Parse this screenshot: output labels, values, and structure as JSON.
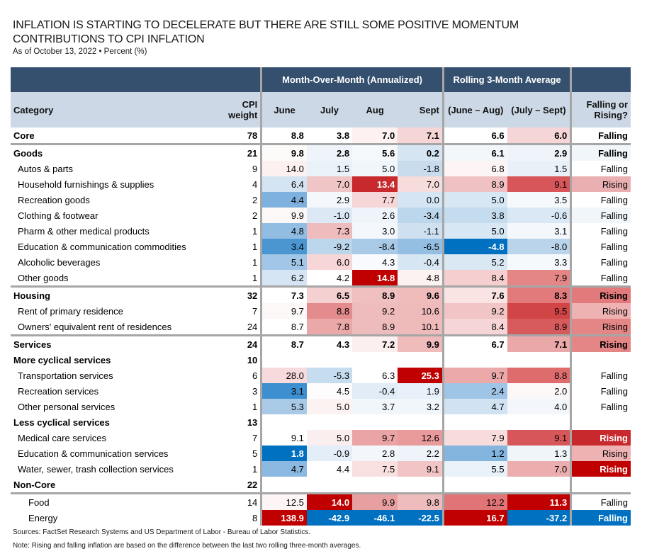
{
  "title_line1": "INFLATION IS STARTING TO DECELERATE BUT THERE ARE STILL SOME POSITIVE MOMENTUM",
  "title_line2": "CONTRIBUTIONS TO CPI INFLATION",
  "subtitle": "As of October 13, 2022 • Percent (%)",
  "header": {
    "group_mom": "Month-Over-Month (Annualized)",
    "group_rolling": "Rolling 3-Month Average",
    "category": "Category",
    "weight": "CPI weight",
    "june": "June",
    "july": "July",
    "aug": "Aug",
    "sept": "Sept",
    "june_aug": "(June – Aug)",
    "july_sept": "(July – Sept)",
    "falling_rising_1": "Falling or",
    "falling_rising_2": "Rising?"
  },
  "colors": {
    "header_dark": "#35506e",
    "header_light": "#ccd8e6",
    "separator": "#a6a6a6",
    "deep_red": "#c00000",
    "deep_blue": "#0070c0"
  },
  "rows": [
    {
      "category": "Core",
      "level": 0,
      "bold": true,
      "weight": "78",
      "june": "8.8",
      "july": "3.8",
      "aug": "7.0",
      "sept": "7.1",
      "ja": "6.6",
      "js": "6.0",
      "trend": "Falling",
      "bg": [
        "#ffffff",
        "#ffffff",
        "#fdf1f1",
        "#f5d5d6",
        "#ffffff",
        "#f5d5d6",
        "#ffffff"
      ]
    },
    {
      "category": "Goods",
      "level": 0,
      "bold": true,
      "sepTop": true,
      "weight": "21",
      "june": "9.8",
      "july": "2.8",
      "aug": "5.6",
      "sept": "0.2",
      "ja": "6.1",
      "js": "2.9",
      "trend": "Falling",
      "bg": [
        "#fdfafa",
        "#eef4fa",
        "#f6f9fc",
        "#d6e5f2",
        "#f2f7fb",
        "#eef4fa",
        "#f1f6fb"
      ]
    },
    {
      "category": "Autos & parts",
      "level": 1,
      "weight": "9",
      "june": "14.0",
      "july": "1.5",
      "aug": "5.0",
      "sept": "-1.8",
      "ja": "6.8",
      "js": "1.5",
      "trend": "Falling",
      "bg": [
        "#fcf0f0",
        "#e9f1f9",
        "#f1f6fb",
        "#c8dcee",
        "#fdf5f5",
        "#e8f0f8",
        "#ffffff"
      ]
    },
    {
      "category": "Household furnishings & supplies",
      "level": 1,
      "weight": "4",
      "june": "6.4",
      "july": "7.0",
      "aug": "13.4",
      "sept": "7.0",
      "ja": "8.9",
      "js": "9.1",
      "trend": "Rising",
      "bg": [
        "#d4e4f3",
        "#f0c5c6",
        "#c8292d",
        "#f7dcdc",
        "#f0c1c2",
        "#d75659",
        "#eab0b1"
      ],
      "white": [
        false,
        false,
        true,
        false,
        false,
        false,
        false
      ]
    },
    {
      "category": "Recreation goods",
      "level": 1,
      "weight": "2",
      "june": "4.4",
      "july": "2.9",
      "aug": "7.7",
      "sept": "0.0",
      "ja": "5.0",
      "js": "3.5",
      "trend": "Falling",
      "bg": [
        "#7eb1de",
        "#f4f8fc",
        "#f6d6d6",
        "#d5e5f3",
        "#d8e7f4",
        "#f6f9fc",
        "#ffffff"
      ]
    },
    {
      "category": "Clothing & footwear",
      "level": 1,
      "weight": "2",
      "june": "9.9",
      "july": "-1.0",
      "aug": "2.6",
      "sept": "-3.4",
      "ja": "3.8",
      "js": "-0.6",
      "trend": "Falling",
      "bg": [
        "#fdf8f8",
        "#dce9f5",
        "#eef4fa",
        "#bcd6ec",
        "#c5dbee",
        "#d9e8f4",
        "#f1f6fb"
      ]
    },
    {
      "category": "Pharm & other medical products",
      "level": 1,
      "weight": "1",
      "june": "4.8",
      "july": "7.3",
      "aug": "3.0",
      "sept": "-1.1",
      "ja": "5.0",
      "js": "3.1",
      "trend": "Falling",
      "bg": [
        "#92bde3",
        "#efbcbd",
        "#f4f8fc",
        "#cfe1f1",
        "#d8e7f4",
        "#f4f8fc",
        "#ffffff"
      ]
    },
    {
      "category": "Education & communication commodities",
      "level": 1,
      "weight": "1",
      "june": "3.4",
      "july": "-9.2",
      "aug": "-8.4",
      "sept": "-6.5",
      "ja": "-4.8",
      "js": "-8.0",
      "trend": "Falling",
      "bg": [
        "#4b96d1",
        "#bcd6ec",
        "#a9cae7",
        "#94bfe3",
        "#0070c0",
        "#b9d4eb",
        "#ffffff"
      ],
      "white": [
        false,
        false,
        false,
        false,
        true,
        false,
        false
      ]
    },
    {
      "category": "Alcoholic beverages",
      "level": 1,
      "weight": "1",
      "june": "5.1",
      "july": "6.0",
      "aug": "4.3",
      "sept": "-0.4",
      "ja": "5.2",
      "js": "3.3",
      "trend": "Falling",
      "bg": [
        "#a1c6e7",
        "#f6d6d7",
        "#f8fafd",
        "#d7e6f3",
        "#dae8f4",
        "#f6f9fc",
        "#ffffff"
      ]
    },
    {
      "category": "Other goods",
      "level": 1,
      "weight": "1",
      "june": "6.2",
      "july": "4.2",
      "aug": "14.8",
      "sept": "4.8",
      "ja": "8.4",
      "js": "7.9",
      "trend": "Falling",
      "bg": [
        "#d5e5f3",
        "#ffffff",
        "#c00000",
        "#fcf2f2",
        "#f5cfd0",
        "#e48586",
        "#ffffff"
      ],
      "white": [
        false,
        false,
        true,
        false,
        false,
        false,
        false
      ]
    },
    {
      "category": "Housing",
      "level": 0,
      "bold": true,
      "sepTop": true,
      "weight": "32",
      "june": "7.3",
      "july": "6.5",
      "aug": "8.9",
      "sept": "9.6",
      "ja": "7.6",
      "js": "8.3",
      "trend": "Rising",
      "bg": [
        "#ffffff",
        "#f5d0d1",
        "#f0bfc0",
        "#efbbbb",
        "#f9e3e3",
        "#e27a7b",
        "#e27a7b"
      ]
    },
    {
      "category": "Rent of primary residence",
      "level": 1,
      "weight": "7",
      "june": "9.7",
      "july": "8.8",
      "aug": "9.2",
      "sept": "10.6",
      "ja": "9.2",
      "js": "9.5",
      "trend": "Rising",
      "bg": [
        "#fdf8f8",
        "#e48b8d",
        "#efbcbd",
        "#eebaba",
        "#f1c4c5",
        "#d24546",
        "#eeb2b3"
      ]
    },
    {
      "category": "Owners' equivalent rent of residences",
      "level": 1,
      "weight": "24",
      "june": "8.7",
      "july": "7.8",
      "aug": "8.9",
      "sept": "10.1",
      "ja": "8.4",
      "js": "8.9",
      "trend": "Rising",
      "bg": [
        "#ffffff",
        "#eaa8a9",
        "#efbcbd",
        "#eebaba",
        "#f6d5d6",
        "#d75b5d",
        "#e48586"
      ]
    },
    {
      "category": "Services",
      "level": 0,
      "bold": true,
      "sepTop": true,
      "weight": "24",
      "june": "8.7",
      "july": "4.3",
      "aug": "7.2",
      "sept": "9.9",
      "ja": "6.7",
      "js": "7.1",
      "trend": "Rising",
      "bg": [
        "#ffffff",
        "#ffffff",
        "#fcefef",
        "#efbbbb",
        "#ffffff",
        "#eaa8a9",
        "#e48586"
      ]
    },
    {
      "category": "More cyclical services",
      "level": 0,
      "bold": true,
      "weight": "10",
      "june": "",
      "july": "",
      "aug": "",
      "sept": "",
      "ja": "",
      "js": "",
      "trend": "",
      "bg": [
        "#ffffff",
        "#ffffff",
        "#ffffff",
        "#ffffff",
        "#ffffff",
        "#ffffff",
        "#ffffff"
      ]
    },
    {
      "category": "Transportation services",
      "level": 1,
      "weight": "6",
      "june": "28.0",
      "july": "-5.3",
      "aug": "6.3",
      "sept": "25.3",
      "ja": "9.7",
      "js": "8.8",
      "trend": "Falling",
      "bg": [
        "#f7dadb",
        "#c6dcef",
        "#ffffff",
        "#c00000",
        "#eba9aa",
        "#df6c6d",
        "#ffffff"
      ],
      "white": [
        false,
        false,
        false,
        true,
        false,
        false,
        false
      ]
    },
    {
      "category": "Recreation services",
      "level": 1,
      "weight": "3",
      "june": "3.1",
      "july": "4.5",
      "aug": "-0.4",
      "sept": "1.9",
      "ja": "2.4",
      "js": "2.0",
      "trend": "Falling",
      "bg": [
        "#3d8fcf",
        "#fefcfc",
        "#e1ecf7",
        "#e8f1f9",
        "#9fc5e6",
        "#fdf8f8",
        "#ffffff"
      ]
    },
    {
      "category": "Other personal services",
      "level": 1,
      "weight": "1",
      "june": "5.3",
      "july": "5.0",
      "aug": "3.7",
      "sept": "3.2",
      "ja": "4.7",
      "js": "4.0",
      "trend": "Falling",
      "bg": [
        "#a8cae7",
        "#fcf2f2",
        "#f1f6fb",
        "#f1f6fb",
        "#d1e3f2",
        "#f3f7fb",
        "#ffffff"
      ]
    },
    {
      "category": "Less cyclical services",
      "level": 0,
      "bold": true,
      "weight": "13",
      "june": "",
      "july": "",
      "aug": "",
      "sept": "",
      "ja": "",
      "js": "",
      "trend": "",
      "bg": [
        "#ffffff",
        "#ffffff",
        "#ffffff",
        "#ffffff",
        "#ffffff",
        "#ffffff",
        "#ffffff"
      ]
    },
    {
      "category": "Medical care services",
      "level": 1,
      "weight": "7",
      "june": "9.1",
      "july": "5.0",
      "aug": "9.7",
      "sept": "12.6",
      "ja": "7.9",
      "js": "9.1",
      "trend": "Rising",
      "bg": [
        "#ffffff",
        "#fbeeee",
        "#eba4a5",
        "#e99a9b",
        "#f8dcdc",
        "#d75659",
        "#c8292d"
      ],
      "white": [
        false,
        false,
        false,
        false,
        false,
        false,
        true
      ]
    },
    {
      "category": "Education & communication services",
      "level": 1,
      "weight": "5",
      "june": "1.8",
      "july": "-0.9",
      "aug": "2.8",
      "sept": "2.2",
      "ja": "1.2",
      "js": "1.3",
      "trend": "Rising",
      "bg": [
        "#0070c0",
        "#e4eef8",
        "#f3f7fc",
        "#eef4fa",
        "#83b5de",
        "#f0f5fa",
        "#eeb2b3"
      ],
      "white": [
        true,
        false,
        false,
        false,
        false,
        false,
        false
      ]
    },
    {
      "category": "Water, sewer, trash collection services",
      "level": 1,
      "weight": "1",
      "june": "4.7",
      "july": "4.4",
      "aug": "7.5",
      "sept": "9.1",
      "ja": "5.5",
      "js": "7.0",
      "trend": "Rising",
      "bg": [
        "#8bb9e1",
        "#ffffff",
        "#f9e0e0",
        "#f1c4c5",
        "#e9f1f9",
        "#ebadae",
        "#c00000"
      ],
      "white": [
        false,
        false,
        false,
        false,
        false,
        false,
        true
      ]
    },
    {
      "category": "Non-Core",
      "level": 0,
      "bold": true,
      "weight": "22",
      "june": "",
      "july": "",
      "aug": "",
      "sept": "",
      "ja": "",
      "js": "",
      "trend": "",
      "bg": [
        "#ffffff",
        "#ffffff",
        "#ffffff",
        "#ffffff",
        "#ffffff",
        "#ffffff",
        "#ffffff"
      ]
    },
    {
      "category": "Food",
      "level": 2,
      "sepTop": true,
      "weight": "14",
      "june": "12.5",
      "july": "14.0",
      "aug": "9.9",
      "sept": "9.8",
      "ja": "12.2",
      "js": "11.3",
      "trend": "Falling",
      "bg": [
        "#fdf5f5",
        "#c00000",
        "#e89fa0",
        "#eebcbc",
        "#e07476",
        "#c00000",
        "#ffffff"
      ],
      "white": [
        false,
        true,
        false,
        false,
        false,
        true,
        false
      ]
    },
    {
      "category": "Energy",
      "level": 2,
      "weight": "8",
      "june": "138.9",
      "july": "-42.9",
      "aug": "-46.1",
      "sept": "-22.5",
      "ja": "16.7",
      "js": "-37.2",
      "trend": "Falling",
      "bg": [
        "#c00000",
        "#0070c0",
        "#0070c0",
        "#0070c0",
        "#c00000",
        "#0070c0",
        "#0070c0"
      ],
      "white": [
        true,
        true,
        true,
        true,
        true,
        true,
        true
      ]
    }
  ],
  "footer": {
    "sources": "Sources: FactSet Research Systems and US Department of Labor - Bureau of Labor Statistics.",
    "note": "Note: Rising and falling inflation are based on the difference between the last two rolling three-month averages."
  }
}
